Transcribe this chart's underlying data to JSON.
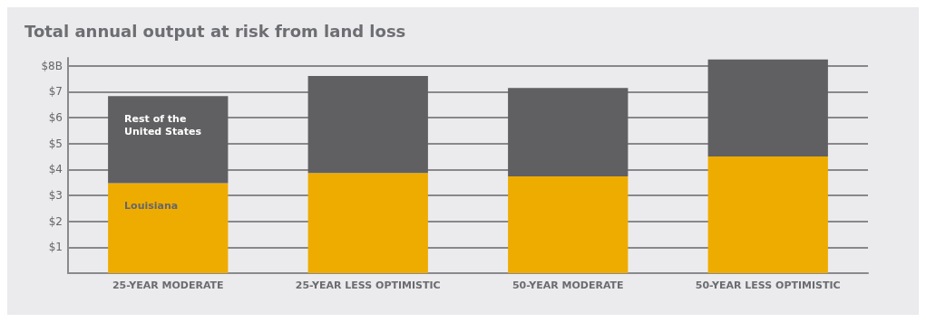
{
  "chart_data": {
    "type": "bar",
    "title": "Total annual output at risk from land loss",
    "categories": [
      "25-YEAR MODERATE",
      "25-YEAR LESS OPTIMISTIC",
      "50-YEAR MODERATE",
      "50-YEAR LESS OPTIMISTIC"
    ],
    "series": [
      {
        "name": "Louisiana",
        "color": "#efac00",
        "values": [
          3.47,
          3.86,
          3.73,
          4.5
        ]
      },
      {
        "name": "Rest of the United States",
        "color": "#606062",
        "values": [
          3.36,
          3.74,
          3.41,
          3.74
        ]
      }
    ],
    "stacked": true,
    "ylim": [
      0,
      8.3
    ],
    "yticks": [
      {
        "value": 0,
        "label": null
      },
      "$1",
      "$2",
      "$3",
      "$4",
      "$5",
      "$6",
      "$7",
      {
        "value": 8,
        "label": "$8B"
      }
    ],
    "grid": "y",
    "legend": false
  }
}
